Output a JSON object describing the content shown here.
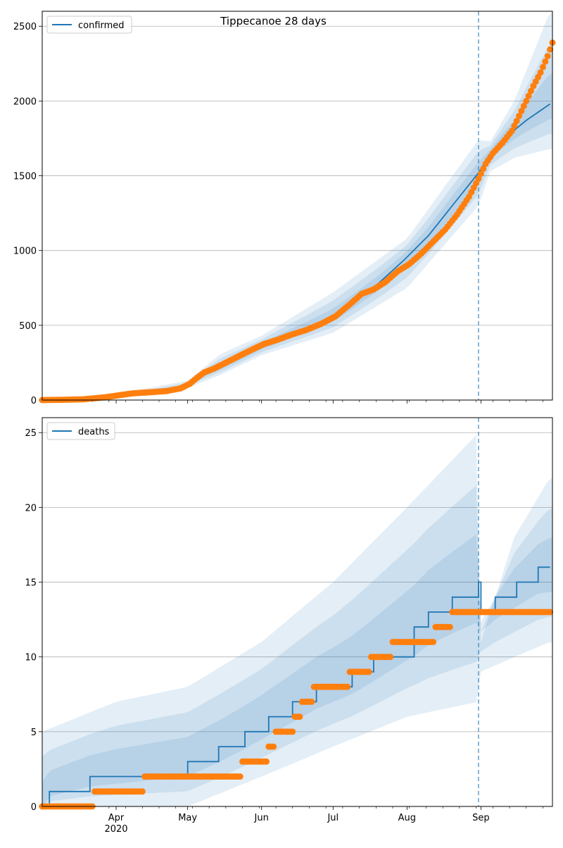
{
  "chart_data": [
    {
      "type": "line",
      "title": "Tippecanoe 28 days",
      "xlabel": "",
      "ylabel": "",
      "ylim": [
        0,
        2600
      ],
      "y_ticks": [
        0,
        500,
        1000,
        1500,
        2000,
        2500
      ],
      "grid": "horizontal",
      "legend": "top-left",
      "x_tick_labels": [
        "Apr\n2020",
        "May",
        "Jun",
        "Jul",
        "Aug",
        "Sep"
      ],
      "forecast_start": "2020-08-31",
      "series": [
        {
          "name": "confirmed",
          "kind": "line",
          "color": "#1f77b4",
          "points": [
            [
              "2020-03-01",
              0
            ],
            [
              "2020-03-15",
              5
            ],
            [
              "2020-03-25",
              15
            ],
            [
              "2020-04-01",
              30
            ],
            [
              "2020-04-10",
              45
            ],
            [
              "2020-04-20",
              60
            ],
            [
              "2020-04-30",
              90
            ],
            [
              "2020-05-05",
              150
            ],
            [
              "2020-05-10",
              190
            ],
            [
              "2020-05-20",
              260
            ],
            [
              "2020-05-31",
              350
            ],
            [
              "2020-06-10",
              420
            ],
            [
              "2020-06-20",
              480
            ],
            [
              "2020-06-30",
              550
            ],
            [
              "2020-07-10",
              660
            ],
            [
              "2020-07-20",
              780
            ],
            [
              "2020-07-31",
              940
            ],
            [
              "2020-08-10",
              1100
            ],
            [
              "2020-08-20",
              1300
            ],
            [
              "2020-08-31",
              1520
            ],
            [
              "2020-09-05",
              1650
            ],
            [
              "2020-09-10",
              1740
            ],
            [
              "2020-09-20",
              1870
            ],
            [
              "2020-09-30",
              1980
            ]
          ]
        },
        {
          "name": "",
          "kind": "bands",
          "color": "#1f77b4",
          "lower": [
            [
              "2020-03-01",
              0
            ],
            [
              "2020-04-01",
              20
            ],
            [
              "2020-05-01",
              80
            ],
            [
              "2020-05-15",
              170
            ],
            [
              "2020-06-01",
              300
            ],
            [
              "2020-07-01",
              450
            ],
            [
              "2020-08-01",
              750
            ],
            [
              "2020-08-31",
              1300
            ],
            [
              "2020-09-05",
              1530
            ],
            [
              "2020-09-15",
              1620
            ],
            [
              "2020-09-30",
              1680
            ]
          ],
          "upper": [
            [
              "2020-03-01",
              10
            ],
            [
              "2020-04-01",
              40
            ],
            [
              "2020-05-01",
              130
            ],
            [
              "2020-05-15",
              310
            ],
            [
              "2020-06-01",
              430
            ],
            [
              "2020-07-01",
              720
            ],
            [
              "2020-08-01",
              1080
            ],
            [
              "2020-08-31",
              1740
            ],
            [
              "2020-09-05",
              1730
            ],
            [
              "2020-09-15",
              2000
            ],
            [
              "2020-09-30",
              2600
            ]
          ]
        },
        {
          "name": "",
          "kind": "scatter",
          "color": "#ff7f0e",
          "points": [
            [
              "2020-03-01",
              0
            ],
            [
              "2020-03-10",
              2
            ],
            [
              "2020-03-18",
              5
            ],
            [
              "2020-03-23",
              12
            ],
            [
              "2020-03-28",
              20
            ],
            [
              "2020-04-02",
              32
            ],
            [
              "2020-04-08",
              45
            ],
            [
              "2020-04-15",
              52
            ],
            [
              "2020-04-22",
              60
            ],
            [
              "2020-04-28",
              78
            ],
            [
              "2020-05-02",
              110
            ],
            [
              "2020-05-05",
              150
            ],
            [
              "2020-05-08",
              185
            ],
            [
              "2020-05-12",
              210
            ],
            [
              "2020-05-17",
              250
            ],
            [
              "2020-05-22",
              290
            ],
            [
              "2020-05-27",
              330
            ],
            [
              "2020-06-02",
              375
            ],
            [
              "2020-06-08",
              405
            ],
            [
              "2020-06-14",
              440
            ],
            [
              "2020-06-20",
              470
            ],
            [
              "2020-06-26",
              510
            ],
            [
              "2020-07-02",
              560
            ],
            [
              "2020-07-08",
              640
            ],
            [
              "2020-07-13",
              710
            ],
            [
              "2020-07-18",
              740
            ],
            [
              "2020-07-23",
              790
            ],
            [
              "2020-07-28",
              860
            ],
            [
              "2020-08-02",
              910
            ],
            [
              "2020-08-07",
              980
            ],
            [
              "2020-08-12",
              1060
            ],
            [
              "2020-08-17",
              1140
            ],
            [
              "2020-08-22",
              1240
            ],
            [
              "2020-08-27",
              1360
            ],
            [
              "2020-08-31",
              1480
            ],
            [
              "2020-09-03",
              1580
            ],
            [
              "2020-09-06",
              1650
            ],
            [
              "2020-09-10",
              1720
            ],
            [
              "2020-09-14",
              1800
            ],
            [
              "2020-09-17",
              1900
            ],
            [
              "2020-09-20",
              2000
            ],
            [
              "2020-09-23",
              2100
            ],
            [
              "2020-09-26",
              2190
            ],
            [
              "2020-09-29",
              2300
            ],
            [
              "2020-10-01",
              2390
            ]
          ]
        }
      ]
    },
    {
      "type": "line",
      "title": "",
      "xlabel": "",
      "ylabel": "",
      "ylim": [
        0,
        26
      ],
      "y_ticks": [
        0,
        5,
        10,
        15,
        20,
        25
      ],
      "grid": "horizontal",
      "legend": "top-left",
      "x_tick_labels": [
        "Apr\n2020",
        "May",
        "Jun",
        "Jul",
        "Aug",
        "Sep"
      ],
      "forecast_start": "2020-08-31",
      "series": [
        {
          "name": "deaths",
          "kind": "step",
          "color": "#1f77b4",
          "points": [
            [
              "2020-03-01",
              0
            ],
            [
              "2020-03-04",
              1
            ],
            [
              "2020-03-21",
              2
            ],
            [
              "2020-05-01",
              3
            ],
            [
              "2020-05-14",
              4
            ],
            [
              "2020-05-25",
              5
            ],
            [
              "2020-06-04",
              6
            ],
            [
              "2020-06-14",
              7
            ],
            [
              "2020-06-24",
              8
            ],
            [
              "2020-07-09",
              9
            ],
            [
              "2020-07-18",
              10
            ],
            [
              "2020-08-04",
              12
            ],
            [
              "2020-08-10",
              13
            ],
            [
              "2020-08-20",
              14
            ],
            [
              "2020-08-31",
              15
            ],
            [
              "2020-09-01",
              13
            ],
            [
              "2020-09-07",
              14
            ],
            [
              "2020-09-16",
              15
            ],
            [
              "2020-09-25",
              16
            ],
            [
              "2020-09-30",
              16
            ]
          ]
        },
        {
          "name": "",
          "kind": "bands",
          "color": "#1f77b4",
          "lower": [
            [
              "2020-03-01",
              0
            ],
            [
              "2020-04-01",
              0
            ],
            [
              "2020-05-01",
              0
            ],
            [
              "2020-06-01",
              2
            ],
            [
              "2020-07-01",
              4
            ],
            [
              "2020-08-01",
              6
            ],
            [
              "2020-08-31",
              7
            ],
            [
              "2020-09-01",
              9
            ],
            [
              "2020-09-15",
              10
            ],
            [
              "2020-09-30",
              11
            ]
          ],
          "upper": [
            [
              "2020-03-01",
              5
            ],
            [
              "2020-04-01",
              7
            ],
            [
              "2020-05-01",
              8
            ],
            [
              "2020-06-01",
              11
            ],
            [
              "2020-07-01",
              15
            ],
            [
              "2020-08-01",
              20
            ],
            [
              "2020-08-31",
              25
            ],
            [
              "2020-09-01",
              11
            ],
            [
              "2020-09-15",
              18
            ],
            [
              "2020-09-30",
              22
            ]
          ]
        },
        {
          "name": "",
          "kind": "scatter",
          "color": "#ff7f0e",
          "points": [
            [
              "2020-03-01",
              0
            ],
            [
              "2020-03-15",
              0
            ],
            [
              "2020-03-23",
              1
            ],
            [
              "2020-04-06",
              1
            ],
            [
              "2020-04-13",
              2
            ],
            [
              "2020-05-01",
              2
            ],
            [
              "2020-05-19",
              2
            ],
            [
              "2020-05-24",
              3
            ],
            [
              "2020-06-01",
              3
            ],
            [
              "2020-06-04",
              4
            ],
            [
              "2020-06-07",
              5
            ],
            [
              "2020-06-12",
              5
            ],
            [
              "2020-06-15",
              6
            ],
            [
              "2020-06-18",
              7
            ],
            [
              "2020-06-23",
              8
            ],
            [
              "2020-07-05",
              8
            ],
            [
              "2020-07-08",
              9
            ],
            [
              "2020-07-14",
              9
            ],
            [
              "2020-07-17",
              10
            ],
            [
              "2020-07-23",
              10
            ],
            [
              "2020-07-26",
              11
            ],
            [
              "2020-08-11",
              11
            ],
            [
              "2020-08-13",
              12
            ],
            [
              "2020-08-18",
              12
            ],
            [
              "2020-08-20",
              13
            ],
            [
              "2020-09-30",
              13
            ]
          ]
        }
      ]
    }
  ]
}
